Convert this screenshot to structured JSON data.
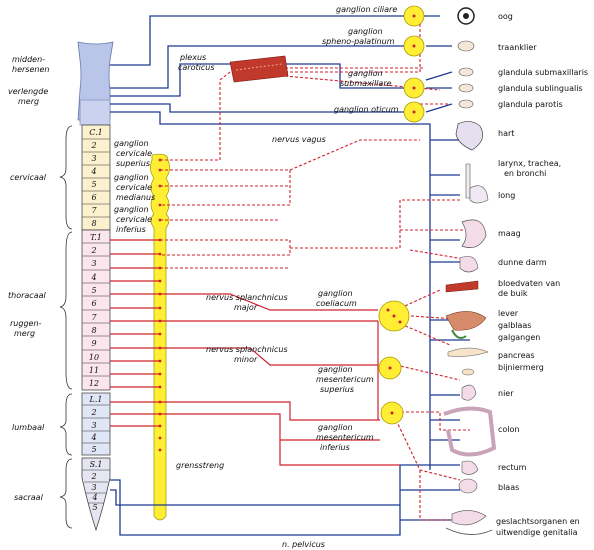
{
  "left_labels": {
    "midbrain": [
      "midden-",
      "hersenen"
    ],
    "medulla": [
      "verlengde",
      "merg"
    ],
    "cervical": "cervicaal",
    "thoracic": "thoracaal",
    "spinal_cord": [
      "ruggen-",
      "merg"
    ],
    "lumbar": "lumbaal",
    "sacral": "sacraal"
  },
  "segments": {
    "cervical": [
      "C.1",
      "2",
      "3",
      "4",
      "5",
      "6",
      "7",
      "8"
    ],
    "thoracic": [
      "T.1",
      "2",
      "3",
      "4",
      "5",
      "6",
      "7",
      "8",
      "9",
      "10",
      "11",
      "12"
    ],
    "lumbar": [
      "L.1",
      "2",
      "3",
      "4",
      "5"
    ],
    "sacral": [
      "S.1",
      "2",
      "3",
      "4",
      "5"
    ]
  },
  "center_labels": {
    "plexus": [
      "plexus",
      "caroticus"
    ],
    "vagus": "nervus vagus",
    "gc_sup": [
      "ganglion",
      "cervicale",
      "superius"
    ],
    "gc_med": [
      "ganglion",
      "cervicale",
      "medianus"
    ],
    "gc_inf": [
      "ganglion",
      "cervicale",
      "inferius"
    ],
    "splanch_major": [
      "nervus splanchnicus",
      "major"
    ],
    "splanch_minor": [
      "nervus splanchnicus",
      "minor"
    ],
    "grensstreng": "grensstreng",
    "pelvicus": "n. pelvicus"
  },
  "ganglia": {
    "ciliare": "ganglion ciliare",
    "spheno": [
      "ganglion",
      "spheno-palatinum"
    ],
    "submax": [
      "ganglion",
      "submaxillare"
    ],
    "oticum": "ganglion oticum",
    "coeliacum": [
      "ganglion",
      "coeliacum"
    ],
    "mes_sup": [
      "ganglion",
      "mesentericum",
      "superius"
    ],
    "mes_inf": [
      "ganglion",
      "mesentericum",
      "inferius"
    ]
  },
  "organs": {
    "oog": "oog",
    "traanklier": "traanklier",
    "submaxillaris": "glandula submaxillaris",
    "sublingualis": "glandula sublingualis",
    "parotis": "glandula parotis",
    "hart": "hart",
    "larynx": [
      "larynx, trachea,",
      "en bronchi"
    ],
    "long": "long",
    "maag": "maag",
    "dunne_darm": "dunne darm",
    "bloedvaten": [
      "bloedvaten van",
      "de buik"
    ],
    "lever": [
      "lever",
      "galblaas",
      "galgangen"
    ],
    "pancreas": "pancreas",
    "bijniermerg": "bijniermerg",
    "nier": "nier",
    "colon": "colon",
    "rectum": "rectum",
    "blaas": "blaas",
    "geslacht": [
      "geslachtsorganen en",
      "uitwendige genitalia"
    ]
  },
  "colors": {
    "parasympathetic": "#1f3a93",
    "sympathetic": "#d0202e",
    "ganglion_fill": "#ffee33",
    "cord_fill": "#b9c6ea",
    "cervical_fill": "#fbf1cf",
    "thoracic_fill": "#fbe6ee",
    "lumbar_fill": "#dfe6f6",
    "sacral_fill": "#e6e6f2"
  }
}
